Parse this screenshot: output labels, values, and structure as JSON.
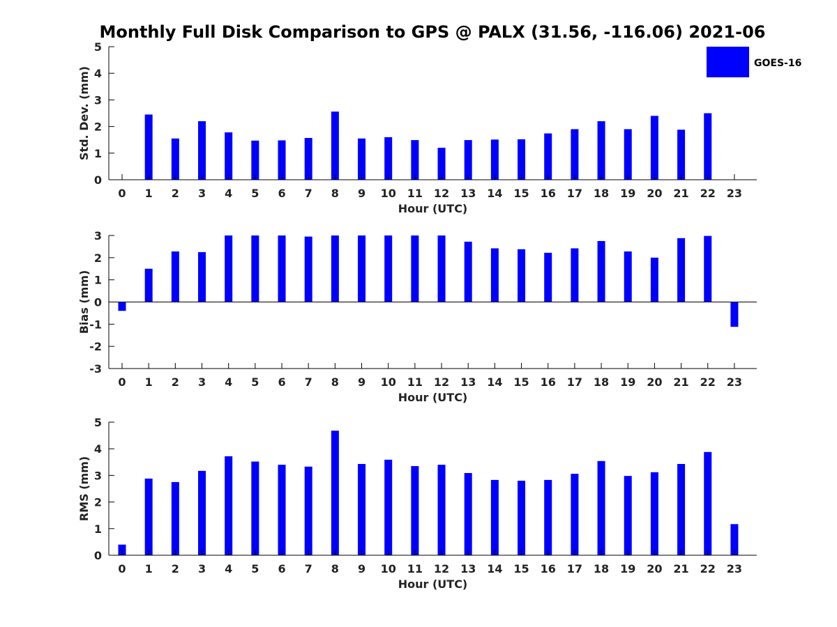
{
  "title": "Monthly Full Disk Comparison to GPS @ PALX (31.56, -116.06) 2021-06",
  "legend": {
    "label": "GOES-16",
    "color": "#0000ff",
    "placement": "top-right"
  },
  "chart_data": [
    {
      "type": "bar",
      "ylabel": "Std. Dev. (mm)",
      "xlabel": "Hour (UTC)",
      "ylim": [
        0,
        5
      ],
      "yticks": [
        0,
        1,
        2,
        3,
        4,
        5
      ],
      "categories": [
        "0",
        "1",
        "2",
        "3",
        "4",
        "5",
        "6",
        "7",
        "8",
        "9",
        "10",
        "11",
        "12",
        "13",
        "14",
        "15",
        "16",
        "17",
        "18",
        "19",
        "20",
        "21",
        "22",
        "23"
      ],
      "series": [
        {
          "name": "GOES-16",
          "values": [
            0,
            2.45,
            1.55,
            2.2,
            1.78,
            1.47,
            1.48,
            1.57,
            2.56,
            1.55,
            1.6,
            1.49,
            1.2,
            1.49,
            1.51,
            1.52,
            1.74,
            1.9,
            2.2,
            1.9,
            2.4,
            1.88,
            2.5,
            0
          ]
        }
      ],
      "grid": false
    },
    {
      "type": "bar",
      "ylabel": "Bias (mm)",
      "xlabel": "Hour (UTC)",
      "ylim": [
        -3,
        3
      ],
      "yticks": [
        -3,
        -2,
        -1,
        0,
        1,
        2,
        3
      ],
      "categories": [
        "0",
        "1",
        "2",
        "3",
        "4",
        "5",
        "6",
        "7",
        "8",
        "9",
        "10",
        "11",
        "12",
        "13",
        "14",
        "15",
        "16",
        "17",
        "18",
        "19",
        "20",
        "21",
        "22",
        "23"
      ],
      "series": [
        {
          "name": "GOES-16",
          "values": [
            -0.4,
            1.5,
            2.28,
            2.25,
            3.0,
            3.0,
            3.0,
            2.95,
            3.0,
            3.0,
            3.0,
            3.0,
            3.0,
            2.72,
            2.42,
            2.38,
            2.22,
            2.42,
            2.75,
            2.28,
            2.0,
            2.88,
            2.98,
            -1.12
          ]
        }
      ],
      "grid": false
    },
    {
      "type": "bar",
      "ylabel": "RMS (mm)",
      "xlabel": "Hour (UTC)",
      "ylim": [
        0,
        5
      ],
      "yticks": [
        0,
        1,
        2,
        3,
        4,
        5
      ],
      "categories": [
        "0",
        "1",
        "2",
        "3",
        "4",
        "5",
        "6",
        "7",
        "8",
        "9",
        "10",
        "11",
        "12",
        "13",
        "14",
        "15",
        "16",
        "17",
        "18",
        "19",
        "20",
        "21",
        "22",
        "23"
      ],
      "series": [
        {
          "name": "GOES-16",
          "values": [
            0.4,
            2.88,
            2.75,
            3.17,
            3.72,
            3.52,
            3.4,
            3.33,
            4.68,
            3.43,
            3.59,
            3.35,
            3.4,
            3.09,
            2.83,
            2.8,
            2.83,
            3.06,
            3.54,
            2.98,
            3.12,
            3.43,
            3.88,
            1.17
          ]
        }
      ],
      "grid": false
    }
  ]
}
